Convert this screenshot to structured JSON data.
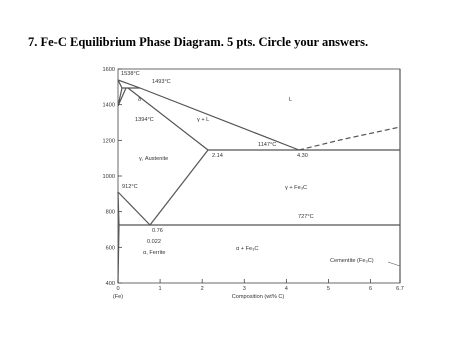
{
  "question": "7.  Fe-C Equilibrium Phase Diagram.  5 pts.  Circle your answers.",
  "figure": {
    "xlim": [
      0,
      6.7
    ],
    "ylim": [
      400,
      1600
    ],
    "xticks": [
      0,
      1,
      2,
      3,
      4,
      5,
      6,
      6.7
    ],
    "yticks": [
      400,
      600,
      800,
      1000,
      1200,
      1400,
      1600
    ],
    "x_label": "Composition (wt% C)",
    "x_origin_label": "(Fe)",
    "labels": [
      "1538°C",
      "1493°C",
      "δ",
      "1394°C",
      "γ + L",
      "L",
      "1147°C",
      "2.14",
      "4.30",
      "γ, Austenite",
      "912°C",
      "γ + Fe₃C",
      "727°C",
      "0.76",
      "0.022",
      "α, Ferrite",
      "α + Fe₃C",
      "Cementite (Fe₃C)"
    ]
  }
}
